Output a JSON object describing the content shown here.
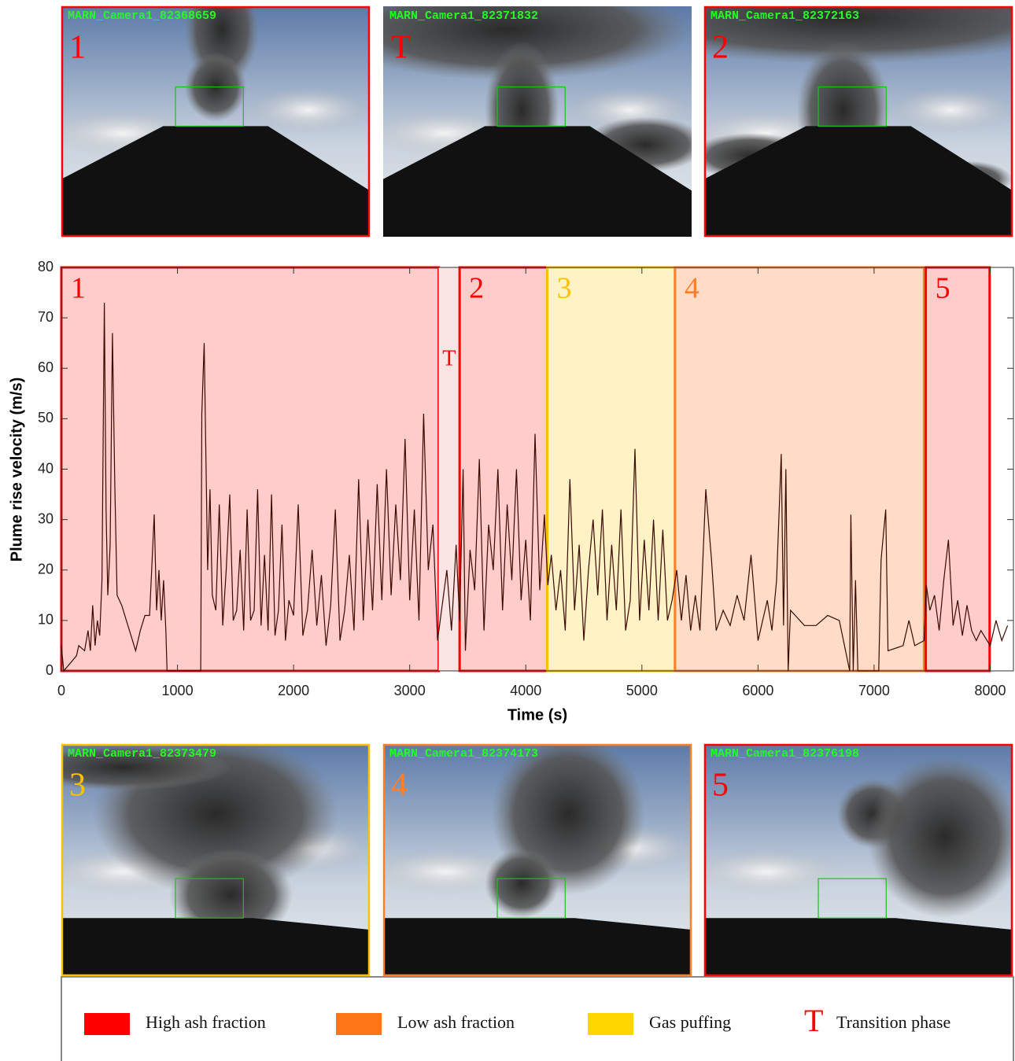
{
  "photos": [
    {
      "camera": "MARN_Camera1_82368659",
      "label": "1",
      "color": "#ff0000",
      "framed": true
    },
    {
      "camera": "MARN_Camera1_82371832",
      "label": "T",
      "color": "#ff0000",
      "framed": false
    },
    {
      "camera": "MARN_Camera1_82372163",
      "label": "2",
      "color": "#ff0000",
      "framed": true
    },
    {
      "camera": "MARN_Camera1_82373479",
      "label": "3",
      "color": "#ffc000",
      "framed": true
    },
    {
      "camera": "MARN_Camera1_82374173",
      "label": "4",
      "color": "#ff7f2a",
      "framed": true
    },
    {
      "camera": "MARN_Camera1_82376198",
      "label": "5",
      "color": "#ff0000",
      "framed": true
    }
  ],
  "chart_data": {
    "type": "line",
    "x_label": "Time (s)",
    "y_label": "Plume rise velocity (m/s)",
    "color": "#3a0a00",
    "xlim": [
      0,
      8200
    ],
    "ylim": [
      0,
      80
    ],
    "xticks": [
      0,
      1000,
      2000,
      3000,
      4000,
      5000,
      6000,
      7000,
      8000
    ],
    "yticks": [
      0,
      10,
      20,
      30,
      40,
      50,
      60,
      70,
      80
    ],
    "phases": [
      {
        "label": "1",
        "start": 0,
        "end": 3250,
        "color": "#ff0000",
        "fill": "#ffcccc",
        "framed": true
      },
      {
        "label": "T",
        "start": 3250,
        "end": 3430,
        "color": "#ff0000",
        "fill": "#fbe4e4",
        "framed": false
      },
      {
        "label": "2",
        "start": 3430,
        "end": 4185,
        "color": "#ff0000",
        "fill": "#ffcccc",
        "framed": true
      },
      {
        "label": "3",
        "start": 4185,
        "end": 5285,
        "color": "#ffc000",
        "fill": "#fff2c4",
        "framed": true
      },
      {
        "label": "4",
        "start": 5285,
        "end": 7430,
        "color": "#ff7f2a",
        "fill": "#ffdcc8",
        "framed": true
      },
      {
        "label": "5",
        "start": 7445,
        "end": 7995,
        "color": "#ff0000",
        "fill": "#ffcccc",
        "framed": true
      }
    ],
    "x": [
      0,
      20,
      130,
      150,
      200,
      230,
      250,
      270,
      290,
      310,
      330,
      350,
      370,
      385,
      400,
      420,
      440,
      460,
      480,
      520,
      560,
      600,
      640,
      680,
      720,
      760,
      800,
      820,
      840,
      860,
      880,
      900,
      910,
      1200,
      1210,
      1230,
      1260,
      1280,
      1300,
      1330,
      1360,
      1390,
      1420,
      1450,
      1480,
      1510,
      1540,
      1570,
      1600,
      1630,
      1660,
      1690,
      1720,
      1750,
      1780,
      1810,
      1840,
      1870,
      1900,
      1930,
      1960,
      2000,
      2040,
      2080,
      2120,
      2160,
      2200,
      2240,
      2280,
      2320,
      2360,
      2400,
      2440,
      2480,
      2520,
      2560,
      2600,
      2640,
      2680,
      2720,
      2760,
      2800,
      2840,
      2880,
      2920,
      2960,
      3000,
      3040,
      3080,
      3120,
      3160,
      3200,
      3240,
      3280,
      3320,
      3360,
      3400,
      3430,
      3460,
      3480,
      3520,
      3560,
      3600,
      3640,
      3680,
      3720,
      3760,
      3800,
      3840,
      3880,
      3920,
      3960,
      4000,
      4040,
      4080,
      4120,
      4160,
      4190,
      4220,
      4260,
      4300,
      4340,
      4380,
      4420,
      4460,
      4500,
      4540,
      4580,
      4620,
      4660,
      4700,
      4740,
      4780,
      4820,
      4860,
      4900,
      4940,
      4980,
      5020,
      5060,
      5100,
      5140,
      5180,
      5220,
      5260,
      5300,
      5340,
      5380,
      5420,
      5460,
      5500,
      5550,
      5600,
      5640,
      5700,
      5760,
      5820,
      5880,
      5940,
      6000,
      6040,
      6080,
      6120,
      6160,
      6200,
      6220,
      6240,
      6260,
      6280,
      6400,
      6500,
      6600,
      6700,
      6790,
      6800,
      6820,
      6840,
      6860,
      7040,
      7060,
      7080,
      7100,
      7120,
      7250,
      7300,
      7350,
      7430,
      7450,
      7480,
      7520,
      7560,
      7600,
      7640,
      7680,
      7720,
      7760,
      7800,
      7840,
      7880,
      7920,
      8000,
      8050,
      8100,
      8150
    ],
    "values": [
      5,
      0,
      3,
      5,
      4,
      8,
      4,
      13,
      5,
      10,
      7,
      18,
      73,
      32,
      15,
      25,
      67,
      37,
      15,
      13,
      10,
      7,
      4,
      8,
      11,
      11,
      31,
      12,
      20,
      10,
      18,
      8,
      0,
      0,
      51,
      65,
      20,
      36,
      15,
      12,
      33,
      9,
      20,
      35,
      10,
      12,
      24,
      8,
      32,
      10,
      12,
      36,
      9,
      23,
      8,
      35,
      7,
      12,
      29,
      6,
      14,
      11,
      33,
      7,
      12,
      24,
      9,
      19,
      5,
      13,
      32,
      6,
      12,
      23,
      8,
      38,
      10,
      30,
      12,
      37,
      14,
      40,
      15,
      33,
      18,
      46,
      14,
      32,
      10,
      51,
      20,
      29,
      6,
      13,
      20,
      8,
      25,
      10,
      40,
      4,
      24,
      16,
      42,
      8,
      29,
      20,
      40,
      12,
      33,
      18,
      40,
      14,
      26,
      10,
      47,
      16,
      31,
      17,
      23,
      12,
      20,
      8,
      38,
      12,
      25,
      6,
      20,
      30,
      15,
      32,
      10,
      25,
      12,
      32,
      8,
      14,
      44,
      10,
      26,
      12,
      30,
      10,
      28,
      10,
      14,
      20,
      10,
      19,
      8,
      15,
      8,
      36,
      22,
      8,
      12,
      9,
      15,
      10,
      23,
      6,
      10,
      14,
      8,
      18,
      43,
      9,
      40,
      0,
      12,
      9,
      9,
      11,
      10,
      0,
      31,
      0,
      18,
      0,
      0,
      22,
      27,
      32,
      4,
      5,
      10,
      5,
      6,
      17,
      12,
      15,
      8,
      18,
      26,
      9,
      14,
      7,
      13,
      8,
      6,
      8,
      5,
      10,
      6,
      9
    ]
  },
  "legend": [
    {
      "label": "High ash fraction",
      "color": "#ff0000"
    },
    {
      "label": "Low ash fraction",
      "color": "#ff7518"
    },
    {
      "label": "Gas puffing",
      "color": "#ffd700"
    },
    {
      "symbol": "T",
      "label": "Transition phase",
      "color": "#ff0000"
    }
  ]
}
